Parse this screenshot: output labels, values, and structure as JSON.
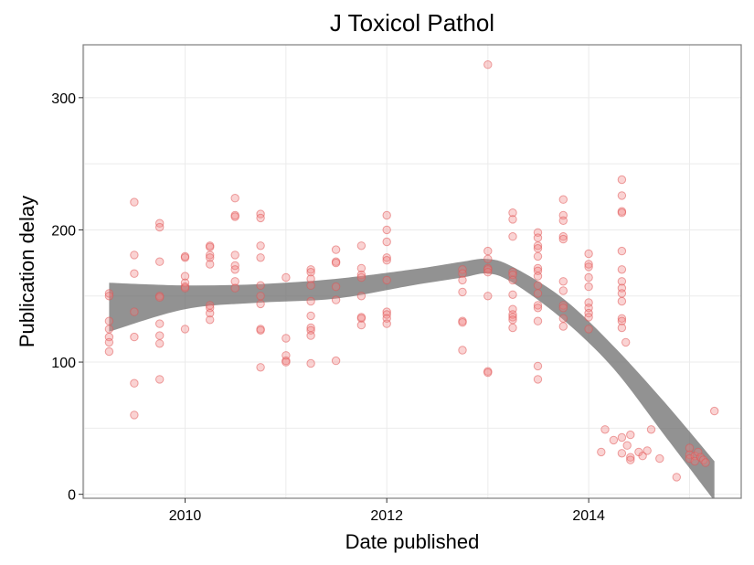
{
  "chart_data": {
    "type": "scatter",
    "title": "J Toxicol Pathol",
    "xlabel": "Date published",
    "ylabel": "Publication delay",
    "xlim": [
      "2008-12-28",
      "2015-07-07"
    ],
    "ylim": [
      -3,
      340
    ],
    "x_ticks": [
      {
        "date": "2010-01-01",
        "label": "2010"
      },
      {
        "date": "2012-01-01",
        "label": "2012"
      },
      {
        "date": "2014-01-01",
        "label": "2014"
      }
    ],
    "y_ticks": [
      0,
      100,
      200,
      300
    ],
    "grid": true,
    "colors": {
      "points": "#f08080",
      "band": "#6e6e6e",
      "panel": "#ffffff",
      "grid": "#ebebeb"
    },
    "points": [
      {
        "x": "2009-04-01",
        "y": 152
      },
      {
        "x": "2009-04-01",
        "y": 150
      },
      {
        "x": "2009-04-01",
        "y": 131
      },
      {
        "x": "2009-04-01",
        "y": 125
      },
      {
        "x": "2009-04-01",
        "y": 119
      },
      {
        "x": "2009-04-01",
        "y": 115
      },
      {
        "x": "2009-04-01",
        "y": 108
      },
      {
        "x": "2009-07-01",
        "y": 221
      },
      {
        "x": "2009-07-01",
        "y": 181
      },
      {
        "x": "2009-07-01",
        "y": 167
      },
      {
        "x": "2009-07-01",
        "y": 138
      },
      {
        "x": "2009-07-01",
        "y": 119
      },
      {
        "x": "2009-07-01",
        "y": 84
      },
      {
        "x": "2009-07-01",
        "y": 60
      },
      {
        "x": "2009-10-01",
        "y": 205
      },
      {
        "x": "2009-10-01",
        "y": 202
      },
      {
        "x": "2009-10-01",
        "y": 176
      },
      {
        "x": "2009-10-01",
        "y": 150
      },
      {
        "x": "2009-10-01",
        "y": 149
      },
      {
        "x": "2009-10-01",
        "y": 129
      },
      {
        "x": "2009-10-01",
        "y": 120
      },
      {
        "x": "2009-10-01",
        "y": 114
      },
      {
        "x": "2009-10-01",
        "y": 87
      },
      {
        "x": "2010-01-01",
        "y": 180
      },
      {
        "x": "2010-01-01",
        "y": 179
      },
      {
        "x": "2010-01-01",
        "y": 165
      },
      {
        "x": "2010-01-01",
        "y": 160
      },
      {
        "x": "2010-01-01",
        "y": 157
      },
      {
        "x": "2010-01-01",
        "y": 156
      },
      {
        "x": "2010-01-01",
        "y": 125
      },
      {
        "x": "2010-04-01",
        "y": 188
      },
      {
        "x": "2010-04-01",
        "y": 187
      },
      {
        "x": "2010-04-01",
        "y": 181
      },
      {
        "x": "2010-04-01",
        "y": 179
      },
      {
        "x": "2010-04-01",
        "y": 174
      },
      {
        "x": "2010-04-01",
        "y": 143
      },
      {
        "x": "2010-04-01",
        "y": 141
      },
      {
        "x": "2010-04-01",
        "y": 137
      },
      {
        "x": "2010-04-01",
        "y": 132
      },
      {
        "x": "2010-07-01",
        "y": 224
      },
      {
        "x": "2010-07-01",
        "y": 211
      },
      {
        "x": "2010-07-01",
        "y": 210
      },
      {
        "x": "2010-07-01",
        "y": 181
      },
      {
        "x": "2010-07-01",
        "y": 173
      },
      {
        "x": "2010-07-01",
        "y": 170
      },
      {
        "x": "2010-07-01",
        "y": 161
      },
      {
        "x": "2010-07-01",
        "y": 156
      },
      {
        "x": "2010-10-01",
        "y": 212
      },
      {
        "x": "2010-10-01",
        "y": 209
      },
      {
        "x": "2010-10-01",
        "y": 188
      },
      {
        "x": "2010-10-01",
        "y": 179
      },
      {
        "x": "2010-10-01",
        "y": 158
      },
      {
        "x": "2010-10-01",
        "y": 150
      },
      {
        "x": "2010-10-01",
        "y": 144
      },
      {
        "x": "2010-10-01",
        "y": 125
      },
      {
        "x": "2010-10-01",
        "y": 124
      },
      {
        "x": "2010-10-01",
        "y": 96
      },
      {
        "x": "2011-01-01",
        "y": 164
      },
      {
        "x": "2011-01-01",
        "y": 118
      },
      {
        "x": "2011-01-01",
        "y": 105
      },
      {
        "x": "2011-01-01",
        "y": 101
      },
      {
        "x": "2011-01-01",
        "y": 100
      },
      {
        "x": "2011-04-01",
        "y": 170
      },
      {
        "x": "2011-04-01",
        "y": 168
      },
      {
        "x": "2011-04-01",
        "y": 163
      },
      {
        "x": "2011-04-01",
        "y": 158
      },
      {
        "x": "2011-04-01",
        "y": 146
      },
      {
        "x": "2011-04-01",
        "y": 135
      },
      {
        "x": "2011-04-01",
        "y": 126
      },
      {
        "x": "2011-04-01",
        "y": 124
      },
      {
        "x": "2011-04-01",
        "y": 120
      },
      {
        "x": "2011-04-01",
        "y": 99
      },
      {
        "x": "2011-07-01",
        "y": 185
      },
      {
        "x": "2011-07-01",
        "y": 176
      },
      {
        "x": "2011-07-01",
        "y": 175
      },
      {
        "x": "2011-07-01",
        "y": 157
      },
      {
        "x": "2011-07-01",
        "y": 147
      },
      {
        "x": "2011-07-01",
        "y": 101
      },
      {
        "x": "2011-10-01",
        "y": 188
      },
      {
        "x": "2011-10-01",
        "y": 171
      },
      {
        "x": "2011-10-01",
        "y": 166
      },
      {
        "x": "2011-10-01",
        "y": 164
      },
      {
        "x": "2011-10-01",
        "y": 150
      },
      {
        "x": "2011-10-01",
        "y": 134
      },
      {
        "x": "2011-10-01",
        "y": 133
      },
      {
        "x": "2011-10-01",
        "y": 128
      },
      {
        "x": "2012-01-01",
        "y": 211
      },
      {
        "x": "2012-01-01",
        "y": 200
      },
      {
        "x": "2012-01-01",
        "y": 191
      },
      {
        "x": "2012-01-01",
        "y": 179
      },
      {
        "x": "2012-01-01",
        "y": 177
      },
      {
        "x": "2012-01-01",
        "y": 162
      },
      {
        "x": "2012-01-01",
        "y": 138
      },
      {
        "x": "2012-01-01",
        "y": 136
      },
      {
        "x": "2012-01-01",
        "y": 133
      },
      {
        "x": "2012-01-01",
        "y": 129
      },
      {
        "x": "2012-10-01",
        "y": 170
      },
      {
        "x": "2012-10-01",
        "y": 167
      },
      {
        "x": "2012-10-01",
        "y": 162
      },
      {
        "x": "2012-10-01",
        "y": 153
      },
      {
        "x": "2012-10-01",
        "y": 131
      },
      {
        "x": "2012-10-01",
        "y": 130
      },
      {
        "x": "2012-10-01",
        "y": 109
      },
      {
        "x": "2013-01-01",
        "y": 325
      },
      {
        "x": "2013-01-01",
        "y": 184
      },
      {
        "x": "2013-01-01",
        "y": 178
      },
      {
        "x": "2013-01-01",
        "y": 171
      },
      {
        "x": "2013-01-01",
        "y": 170
      },
      {
        "x": "2013-01-01",
        "y": 168
      },
      {
        "x": "2013-01-01",
        "y": 150
      },
      {
        "x": "2013-01-01",
        "y": 93
      },
      {
        "x": "2013-01-01",
        "y": 92
      },
      {
        "x": "2013-04-01",
        "y": 213
      },
      {
        "x": "2013-04-01",
        "y": 208
      },
      {
        "x": "2013-04-01",
        "y": 195
      },
      {
        "x": "2013-04-01",
        "y": 168
      },
      {
        "x": "2013-04-01",
        "y": 166
      },
      {
        "x": "2013-04-01",
        "y": 162
      },
      {
        "x": "2013-04-01",
        "y": 151
      },
      {
        "x": "2013-04-01",
        "y": 140
      },
      {
        "x": "2013-04-01",
        "y": 136
      },
      {
        "x": "2013-04-01",
        "y": 134
      },
      {
        "x": "2013-04-01",
        "y": 132
      },
      {
        "x": "2013-04-01",
        "y": 126
      },
      {
        "x": "2013-07-01",
        "y": 198
      },
      {
        "x": "2013-07-01",
        "y": 194
      },
      {
        "x": "2013-07-01",
        "y": 188
      },
      {
        "x": "2013-07-01",
        "y": 186
      },
      {
        "x": "2013-07-01",
        "y": 180
      },
      {
        "x": "2013-07-01",
        "y": 171
      },
      {
        "x": "2013-07-01",
        "y": 169
      },
      {
        "x": "2013-07-01",
        "y": 165
      },
      {
        "x": "2013-07-01",
        "y": 158
      },
      {
        "x": "2013-07-01",
        "y": 152
      },
      {
        "x": "2013-07-01",
        "y": 143
      },
      {
        "x": "2013-07-01",
        "y": 141
      },
      {
        "x": "2013-07-01",
        "y": 131
      },
      {
        "x": "2013-07-01",
        "y": 97
      },
      {
        "x": "2013-07-01",
        "y": 87
      },
      {
        "x": "2013-10-01",
        "y": 223
      },
      {
        "x": "2013-10-01",
        "y": 211
      },
      {
        "x": "2013-10-01",
        "y": 207
      },
      {
        "x": "2013-10-01",
        "y": 195
      },
      {
        "x": "2013-10-01",
        "y": 193
      },
      {
        "x": "2013-10-01",
        "y": 161
      },
      {
        "x": "2013-10-01",
        "y": 154
      },
      {
        "x": "2013-10-01",
        "y": 143
      },
      {
        "x": "2013-10-01",
        "y": 141
      },
      {
        "x": "2013-10-01",
        "y": 133
      },
      {
        "x": "2013-10-01",
        "y": 127
      },
      {
        "x": "2014-01-01",
        "y": 182
      },
      {
        "x": "2014-01-01",
        "y": 174
      },
      {
        "x": "2014-01-01",
        "y": 172
      },
      {
        "x": "2014-01-01",
        "y": 164
      },
      {
        "x": "2014-01-01",
        "y": 157
      },
      {
        "x": "2014-01-01",
        "y": 145
      },
      {
        "x": "2014-01-01",
        "y": 141
      },
      {
        "x": "2014-01-01",
        "y": 137
      },
      {
        "x": "2014-01-01",
        "y": 134
      },
      {
        "x": "2014-01-01",
        "y": 125
      },
      {
        "x": "2014-02-15",
        "y": 32
      },
      {
        "x": "2014-03-01",
        "y": 49
      },
      {
        "x": "2014-04-01",
        "y": 41
      },
      {
        "x": "2014-05-01",
        "y": 238
      },
      {
        "x": "2014-05-01",
        "y": 226
      },
      {
        "x": "2014-05-01",
        "y": 214
      },
      {
        "x": "2014-05-01",
        "y": 213
      },
      {
        "x": "2014-05-01",
        "y": 184
      },
      {
        "x": "2014-05-01",
        "y": 170
      },
      {
        "x": "2014-05-01",
        "y": 161
      },
      {
        "x": "2014-05-01",
        "y": 156
      },
      {
        "x": "2014-05-01",
        "y": 152
      },
      {
        "x": "2014-05-01",
        "y": 146
      },
      {
        "x": "2014-05-01",
        "y": 133
      },
      {
        "x": "2014-05-01",
        "y": 131
      },
      {
        "x": "2014-05-01",
        "y": 126
      },
      {
        "x": "2014-05-01",
        "y": 43
      },
      {
        "x": "2014-05-01",
        "y": 31
      },
      {
        "x": "2014-05-15",
        "y": 115
      },
      {
        "x": "2014-05-20",
        "y": 37
      },
      {
        "x": "2014-06-01",
        "y": 45
      },
      {
        "x": "2014-06-01",
        "y": 28
      },
      {
        "x": "2014-06-01",
        "y": 26
      },
      {
        "x": "2014-07-01",
        "y": 32
      },
      {
        "x": "2014-07-15",
        "y": 29
      },
      {
        "x": "2014-08-01",
        "y": 33
      },
      {
        "x": "2014-08-15",
        "y": 49
      },
      {
        "x": "2014-09-15",
        "y": 27
      },
      {
        "x": "2014-11-15",
        "y": 13
      },
      {
        "x": "2015-01-01",
        "y": 35
      },
      {
        "x": "2015-01-01",
        "y": 30
      },
      {
        "x": "2015-01-01",
        "y": 27
      },
      {
        "x": "2015-01-20",
        "y": 29
      },
      {
        "x": "2015-01-20",
        "y": 25
      },
      {
        "x": "2015-02-01",
        "y": 32
      },
      {
        "x": "2015-02-10",
        "y": 28
      },
      {
        "x": "2015-02-20",
        "y": 26
      },
      {
        "x": "2015-02-28",
        "y": 24
      },
      {
        "x": "2015-04-01",
        "y": 63
      }
    ],
    "smooth_band": {
      "x": [
        "2009-04-01",
        "2010-01-01",
        "2010-10-01",
        "2011-07-01",
        "2012-04-01",
        "2012-10-01",
        "2013-01-01",
        "2013-04-01",
        "2013-10-01",
        "2014-04-01",
        "2014-10-01",
        "2015-04-01"
      ],
      "lower": [
        123,
        140,
        145,
        148,
        158,
        164,
        167,
        160,
        132,
        95,
        45,
        -5
      ],
      "upper": [
        160,
        158,
        159,
        163,
        170,
        176,
        178,
        172,
        148,
        112,
        70,
        25
      ]
    }
  }
}
